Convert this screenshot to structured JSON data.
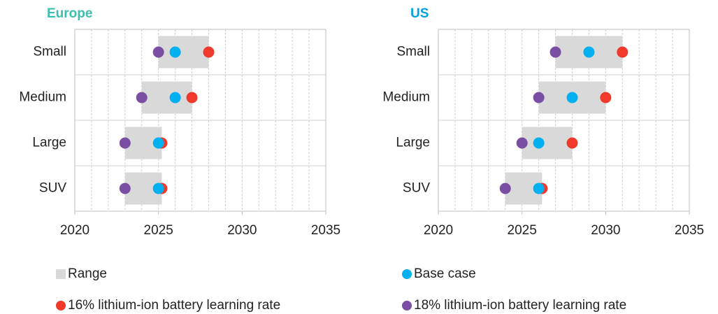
{
  "chart_data": [
    {
      "type": "range-dot",
      "title": "Europe",
      "title_color": "#3dbfae",
      "categories": [
        "Small",
        "Medium",
        "Large",
        "SUV"
      ],
      "xlim": [
        2020,
        2035
      ],
      "xticks": [
        2020,
        2025,
        2030,
        2035
      ],
      "xgrid": [
        2021,
        2022,
        2023,
        2024,
        2025,
        2026,
        2027,
        2028,
        2029,
        2030,
        2031,
        2032,
        2033,
        2034
      ],
      "series": [
        {
          "low": [
            2025,
            2024,
            2023,
            2023
          ],
          "high": [
            2028,
            2027,
            2025.2,
            2025.2
          ]
        },
        {
          "values": [
            2026,
            2026,
            2025,
            2025
          ]
        },
        {
          "values": [
            2028,
            2027,
            2025.2,
            2025.2
          ]
        },
        {
          "values": [
            2025,
            2024,
            2023,
            2023
          ]
        }
      ]
    },
    {
      "type": "range-dot",
      "title": "US",
      "title_color": "#00a3e0",
      "categories": [
        "Small",
        "Medium",
        "Large",
        "SUV"
      ],
      "xlim": [
        2020,
        2035
      ],
      "xticks": [
        2020,
        2025,
        2030,
        2035
      ],
      "xgrid": [
        2021,
        2022,
        2023,
        2024,
        2025,
        2026,
        2027,
        2028,
        2029,
        2030,
        2031,
        2032,
        2033,
        2034
      ],
      "series": [
        {
          "low": [
            2027,
            2026,
            2025,
            2024
          ],
          "high": [
            2031,
            2030,
            2028,
            2026.2
          ]
        },
        {
          "values": [
            2029,
            2028,
            2026,
            2026
          ]
        },
        {
          "values": [
            2031,
            2030,
            2028,
            2026.2
          ]
        },
        {
          "values": [
            2027,
            2026,
            2025,
            2024
          ]
        }
      ]
    }
  ],
  "legend": [
    {
      "name": "Range",
      "color": "#d9d9d9"
    },
    {
      "name": "Base case",
      "color": "#00b0f0"
    },
    {
      "name": "16% lithium-ion battery learning rate",
      "color": "#f0392b"
    },
    {
      "name": "18% lithium-ion battery learning rate",
      "color": "#7a4ea3"
    }
  ]
}
